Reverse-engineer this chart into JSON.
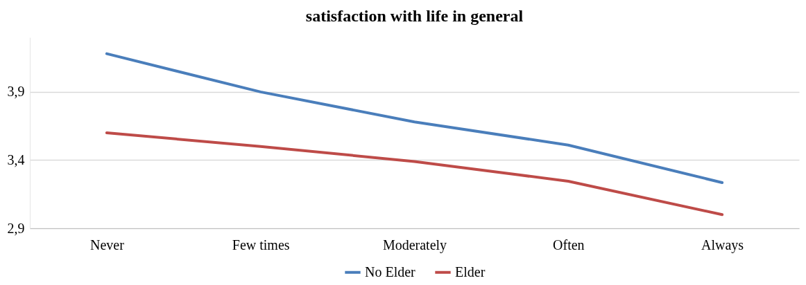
{
  "chart_data": {
    "type": "line",
    "title": "satisfaction with life in general",
    "categories": [
      "Never",
      "Few times",
      "Moderately",
      "Often",
      "Always"
    ],
    "series": [
      {
        "name": "No Elder",
        "color": "#4a7ebb",
        "values": [
          4.18,
          3.9,
          3.68,
          3.51,
          3.235
        ]
      },
      {
        "name": "Elder",
        "color": "#be4b48",
        "values": [
          3.6,
          3.5,
          3.39,
          3.245,
          3.0
        ]
      }
    ],
    "ylim": [
      2.9,
      4.3
    ],
    "yticks": [
      {
        "value": 2.9,
        "label": "2,9"
      },
      {
        "value": 3.4,
        "label": "3,4"
      },
      {
        "value": 3.9,
        "label": "3,9"
      }
    ],
    "grid": "y",
    "legend": "bottom",
    "marker": "none",
    "line_style": "solid"
  }
}
